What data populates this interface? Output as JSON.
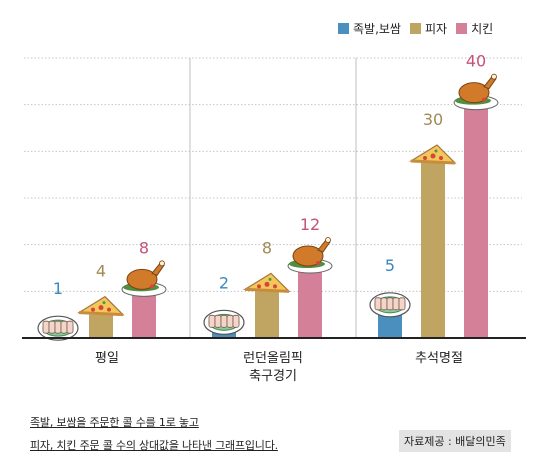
{
  "chart_data": {
    "type": "bar",
    "categories": [
      "평일",
      "런던올림픽\n축구경기",
      "추석명절"
    ],
    "series": [
      {
        "name": "족발,보쌈",
        "color": "#4a8fbd",
        "values": [
          1,
          2,
          5
        ]
      },
      {
        "name": "피자",
        "color": "#c0a562",
        "values": [
          4,
          8,
          30
        ]
      },
      {
        "name": "치킨",
        "color": "#d48099",
        "values": [
          8,
          12,
          40
        ]
      }
    ],
    "ylim": [
      0,
      48
    ],
    "grid": true,
    "legend": "top-right",
    "label_colors": [
      "#3a88bd",
      "#a08a55",
      "#c4527a"
    ]
  },
  "footnote": {
    "line1": "족발, 보쌈을 주문한 콜 수를 1로 놓고",
    "line2": "피자, 치킨 주문 콜 수의 상대값을 나타낸 그래프입니다."
  },
  "source": "자료제공 : 배달의민족"
}
